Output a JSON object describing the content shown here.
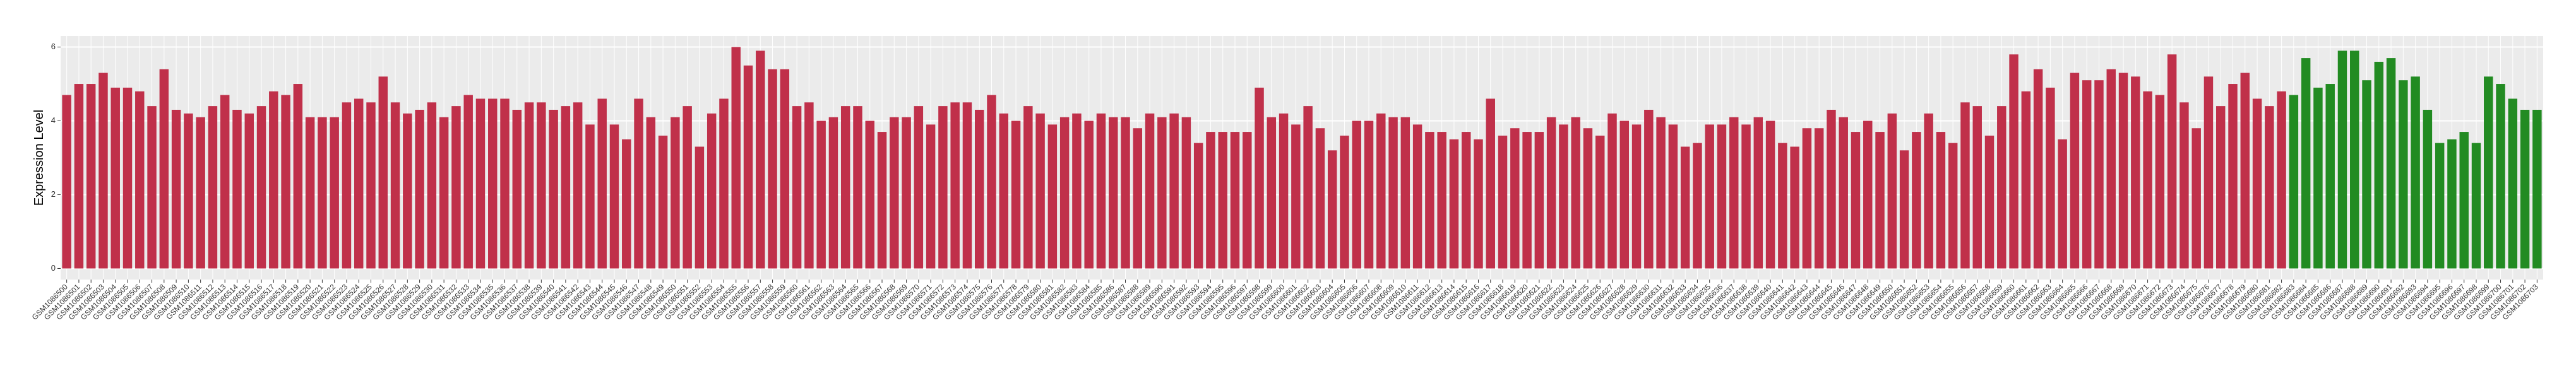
{
  "chart_data": {
    "type": "bar",
    "ylabel": "Expression Level",
    "ylim": [
      -0.3,
      6.3
    ],
    "yticks": [
      0,
      2,
      4,
      6
    ],
    "grid": true,
    "categories": [
      "GSM1086500",
      "GSM1086501",
      "GSM1086502",
      "GSM1086503",
      "GSM1086504",
      "GSM1086505",
      "GSM1086506",
      "GSM1086507",
      "GSM1086508",
      "GSM1086509",
      "GSM1086510",
      "GSM1086511",
      "GSM1086512",
      "GSM1086513",
      "GSM1086514",
      "GSM1086515",
      "GSM1086516",
      "GSM1086517",
      "GSM1086518",
      "GSM1086519",
      "GSM1086520",
      "GSM1086521",
      "GSM1086522",
      "GSM1086523",
      "GSM1086524",
      "GSM1086525",
      "GSM1086526",
      "GSM1086527",
      "GSM1086528",
      "GSM1086529",
      "GSM1086530",
      "GSM1086531",
      "GSM1086532",
      "GSM1086533",
      "GSM1086534",
      "GSM1086535",
      "GSM1086536",
      "GSM1086537",
      "GSM1086538",
      "GSM1086539",
      "GSM1086540",
      "GSM1086541",
      "GSM1086542",
      "GSM1086543",
      "GSM1086544",
      "GSM1086545",
      "GSM1086546",
      "GSM1086547",
      "GSM1086548",
      "GSM1086549",
      "GSM1086550",
      "GSM1086551",
      "GSM1086552",
      "GSM1086553",
      "GSM1086554",
      "GSM1086555",
      "GSM1086556",
      "GSM1086557",
      "GSM1086558",
      "GSM1086559",
      "GSM1086560",
      "GSM1086561",
      "GSM1086562",
      "GSM1086563",
      "GSM1086564",
      "GSM1086565",
      "GSM1086566",
      "GSM1086567",
      "GSM1086568",
      "GSM1086569",
      "GSM1086570",
      "GSM1086571",
      "GSM1086572",
      "GSM1086573",
      "GSM1086574",
      "GSM1086575",
      "GSM1086576",
      "GSM1086577",
      "GSM1086578",
      "GSM1086579",
      "GSM1086580",
      "GSM1086581",
      "GSM1086582",
      "GSM1086583",
      "GSM1086584",
      "GSM1086585",
      "GSM1086586",
      "GSM1086587",
      "GSM1086588",
      "GSM1086589",
      "GSM1086590",
      "GSM1086591",
      "GSM1086592",
      "GSM1086593",
      "GSM1086594",
      "GSM1086595",
      "GSM1086596",
      "GSM1086597",
      "GSM1086598",
      "GSM1086599",
      "GSM1086600",
      "GSM1086601",
      "GSM1086602",
      "GSM1086603",
      "GSM1086604",
      "GSM1086605",
      "GSM1086606",
      "GSM1086607",
      "GSM1086608",
      "GSM1086609",
      "GSM1086610",
      "GSM1086611",
      "GSM1086612",
      "GSM1086613",
      "GSM1086614",
      "GSM1086615",
      "GSM1086616",
      "GSM1086617",
      "GSM1086618",
      "GSM1086619",
      "GSM1086620",
      "GSM1086621",
      "GSM1086622",
      "GSM1086623",
      "GSM1086624",
      "GSM1086625",
      "GSM1086626",
      "GSM1086627",
      "GSM1086628",
      "GSM1086629",
      "GSM1086630",
      "GSM1086631",
      "GSM1086632",
      "GSM1086633",
      "GSM1086634",
      "GSM1086635",
      "GSM1086636",
      "GSM1086637",
      "GSM1086638",
      "GSM1086639",
      "GSM1086640",
      "GSM1086641",
      "GSM1086642",
      "GSM1086643",
      "GSM1086644",
      "GSM1086645",
      "GSM1086646",
      "GSM1086647",
      "GSM1086648",
      "GSM1086649",
      "GSM1086650",
      "GSM1086651",
      "GSM1086652",
      "GSM1086653",
      "GSM1086654",
      "GSM1086655",
      "GSM1086656",
      "GSM1086657",
      "GSM1086658",
      "GSM1086659",
      "GSM1086660",
      "GSM1086661",
      "GSM1086662",
      "GSM1086663",
      "GSM1086664",
      "GSM1086665",
      "GSM1086666",
      "GSM1086667",
      "GSM1086668",
      "GSM1086669",
      "GSM1086670",
      "GSM1086671",
      "GSM1086672",
      "GSM1086673",
      "GSM1086674",
      "GSM1086675",
      "GSM1086676",
      "GSM1086677",
      "GSM1086678",
      "GSM1086679",
      "GSM1086680",
      "GSM1086681",
      "GSM1086682",
      "GSM1086683",
      "GSM1086684",
      "GSM1086685",
      "GSM1086686",
      "GSM1086687",
      "GSM1086688",
      "GSM1086689",
      "GSM1086690",
      "GSM1086691",
      "GSM1086692",
      "GSM1086693",
      "GSM1086694",
      "GSM1086695",
      "GSM1086696",
      "GSM1086697",
      "GSM1086698",
      "GSM1086699",
      "GSM1086700",
      "GSM1086701",
      "GSM1086702",
      "GSM1086703"
    ],
    "values": [
      4.7,
      5.0,
      5.0,
      5.3,
      4.9,
      4.9,
      4.8,
      4.4,
      5.4,
      4.3,
      4.2,
      4.1,
      4.4,
      4.7,
      4.3,
      4.2,
      4.4,
      4.8,
      4.7,
      5.0,
      4.1,
      4.1,
      4.1,
      4.5,
      4.6,
      4.5,
      5.2,
      4.5,
      4.2,
      4.3,
      4.5,
      4.1,
      4.4,
      4.7,
      4.6,
      4.6,
      4.6,
      4.3,
      4.5,
      4.5,
      4.3,
      4.4,
      4.5,
      3.9,
      4.6,
      3.9,
      3.5,
      4.6,
      4.1,
      3.6,
      4.1,
      4.4,
      3.3,
      4.2,
      4.6,
      6.0,
      5.5,
      5.9,
      5.4,
      5.4,
      4.4,
      4.5,
      4.0,
      4.1,
      4.4,
      4.4,
      4.0,
      3.7,
      4.1,
      4.1,
      4.4,
      3.9,
      4.4,
      4.5,
      4.5,
      4.3,
      4.7,
      4.2,
      4.0,
      4.4,
      4.2,
      3.9,
      4.1,
      4.2,
      4.0,
      4.2,
      4.1,
      4.1,
      3.8,
      4.2,
      4.1,
      4.2,
      4.1,
      3.4,
      3.7,
      3.7,
      3.7,
      3.7,
      4.9,
      4.1,
      4.2,
      3.9,
      4.4,
      3.8,
      3.2,
      3.6,
      4.0,
      4.0,
      4.2,
      4.1,
      4.1,
      3.9,
      3.7,
      3.7,
      3.5,
      3.7,
      3.5,
      4.6,
      3.6,
      3.8,
      3.7,
      3.7,
      4.1,
      3.9,
      4.1,
      3.8,
      3.6,
      4.2,
      4.0,
      3.9,
      4.3,
      4.1,
      3.9,
      3.3,
      3.4,
      3.9,
      3.9,
      4.1,
      3.9,
      4.1,
      4.0,
      3.4,
      3.3,
      3.8,
      3.8,
      4.3,
      4.1,
      3.7,
      4.0,
      3.7,
      4.2,
      3.2,
      3.7,
      4.2,
      3.7,
      3.4,
      4.5,
      4.4,
      3.6,
      4.4,
      5.8,
      4.8,
      5.4,
      4.9,
      3.5,
      5.3,
      5.1,
      5.1,
      5.4,
      5.3,
      5.2,
      4.8,
      4.7,
      5.8,
      4.5,
      3.8,
      5.2,
      4.4,
      5.0,
      5.3,
      4.6,
      4.4,
      4.8,
      4.7,
      5.7,
      4.9,
      5.0,
      5.9,
      5.9,
      5.1,
      5.6,
      5.7,
      5.1,
      5.2,
      4.3,
      3.4,
      3.5,
      3.7,
      3.4,
      5.2,
      5.0,
      4.6,
      4.3,
      4.3
    ],
    "colors": [
      "#c0304a",
      "#c0304a",
      "#c0304a",
      "#c0304a",
      "#c0304a",
      "#c0304a",
      "#c0304a",
      "#c0304a",
      "#c0304a",
      "#c0304a",
      "#c0304a",
      "#c0304a",
      "#c0304a",
      "#c0304a",
      "#c0304a",
      "#c0304a",
      "#c0304a",
      "#c0304a",
      "#c0304a",
      "#c0304a",
      "#c0304a",
      "#c0304a",
      "#c0304a",
      "#c0304a",
      "#c0304a",
      "#c0304a",
      "#c0304a",
      "#c0304a",
      "#c0304a",
      "#c0304a",
      "#c0304a",
      "#c0304a",
      "#c0304a",
      "#c0304a",
      "#c0304a",
      "#c0304a",
      "#c0304a",
      "#c0304a",
      "#c0304a",
      "#c0304a",
      "#c0304a",
      "#c0304a",
      "#c0304a",
      "#c0304a",
      "#c0304a",
      "#c0304a",
      "#c0304a",
      "#c0304a",
      "#c0304a",
      "#c0304a",
      "#c0304a",
      "#c0304a",
      "#c0304a",
      "#c0304a",
      "#c0304a",
      "#c0304a",
      "#c0304a",
      "#c0304a",
      "#c0304a",
      "#c0304a",
      "#c0304a",
      "#c0304a",
      "#c0304a",
      "#c0304a",
      "#c0304a",
      "#c0304a",
      "#c0304a",
      "#c0304a",
      "#c0304a",
      "#c0304a",
      "#c0304a",
      "#c0304a",
      "#c0304a",
      "#c0304a",
      "#c0304a",
      "#c0304a",
      "#c0304a",
      "#c0304a",
      "#c0304a",
      "#c0304a",
      "#c0304a",
      "#c0304a",
      "#c0304a",
      "#c0304a",
      "#c0304a",
      "#c0304a",
      "#c0304a",
      "#c0304a",
      "#c0304a",
      "#c0304a",
      "#c0304a",
      "#c0304a",
      "#c0304a",
      "#c0304a",
      "#c0304a",
      "#c0304a",
      "#c0304a",
      "#c0304a",
      "#c0304a",
      "#c0304a",
      "#c0304a",
      "#c0304a",
      "#c0304a",
      "#c0304a",
      "#c0304a",
      "#c0304a",
      "#c0304a",
      "#c0304a",
      "#c0304a",
      "#c0304a",
      "#c0304a",
      "#c0304a",
      "#c0304a",
      "#c0304a",
      "#c0304a",
      "#c0304a",
      "#c0304a",
      "#c0304a",
      "#c0304a",
      "#c0304a",
      "#c0304a",
      "#c0304a",
      "#c0304a",
      "#c0304a",
      "#c0304a",
      "#c0304a",
      "#c0304a",
      "#c0304a",
      "#c0304a",
      "#c0304a",
      "#c0304a",
      "#c0304a",
      "#c0304a",
      "#c0304a",
      "#c0304a",
      "#c0304a",
      "#c0304a",
      "#c0304a",
      "#c0304a",
      "#c0304a",
      "#c0304a",
      "#c0304a",
      "#c0304a",
      "#c0304a",
      "#c0304a",
      "#c0304a",
      "#c0304a",
      "#c0304a",
      "#c0304a",
      "#c0304a",
      "#c0304a",
      "#c0304a",
      "#c0304a",
      "#c0304a",
      "#c0304a",
      "#c0304a",
      "#c0304a",
      "#c0304a",
      "#c0304a",
      "#c0304a",
      "#c0304a",
      "#c0304a",
      "#c0304a",
      "#c0304a",
      "#c0304a",
      "#c0304a",
      "#c0304a",
      "#c0304a",
      "#c0304a",
      "#c0304a",
      "#c0304a",
      "#c0304a",
      "#c0304a",
      "#c0304a",
      "#c0304a",
      "#c0304a",
      "#c0304a",
      "#c0304a",
      "#c0304a",
      "#c0304a",
      "#c0304a",
      "#c0304a",
      "#c0304a",
      "#228b22",
      "#228b22",
      "#228b22",
      "#228b22",
      "#228b22",
      "#228b22",
      "#228b22",
      "#228b22",
      "#228b22",
      "#228b22",
      "#228b22",
      "#228b22",
      "#228b22",
      "#228b22",
      "#228b22",
      "#228b22",
      "#228b22",
      "#228b22",
      "#228b22",
      "#228b22",
      "#228b22"
    ]
  }
}
